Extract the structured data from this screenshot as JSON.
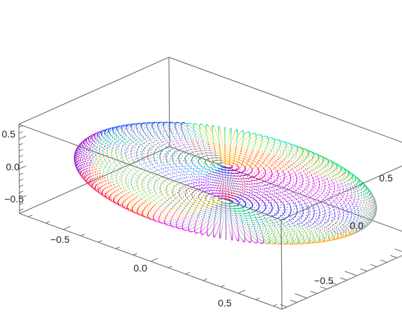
{
  "chart_data": {
    "type": "scatter",
    "subtype": "3d-point-cloud",
    "title": "",
    "xlabel": "",
    "ylabel": "",
    "zlabel": "",
    "surface": "oblate ellipsoid",
    "semi_axes": {
      "x": 0.75,
      "y": 0.75,
      "z": 0.3
    },
    "xlim": [
      -0.75,
      0.75
    ],
    "ylim": [
      -0.75,
      0.75
    ],
    "zlim": [
      -0.75,
      0.75
    ],
    "x_ticks": [
      -0.5,
      0.0,
      0.5
    ],
    "x_tick_labels": [
      "−0.5",
      "0.0",
      "0.5"
    ],
    "y_ticks": [
      -0.5,
      0.0,
      0.5
    ],
    "y_tick_labels": [
      "−0.5",
      "0.0",
      "0.5"
    ],
    "z_ticks": [
      -0.5,
      0.0,
      0.5
    ],
    "z_tick_labels": [
      "−0.5",
      "0.0",
      "0.5"
    ],
    "grid": false,
    "legend": "none",
    "box": true,
    "point_colors": [
      "#ff00ff",
      "#ff9900",
      "#ffd000",
      "#8a9a9a",
      "#00d060",
      "#00e8e8",
      "#0040ff",
      "#9000c8",
      "#ff0033"
    ]
  }
}
